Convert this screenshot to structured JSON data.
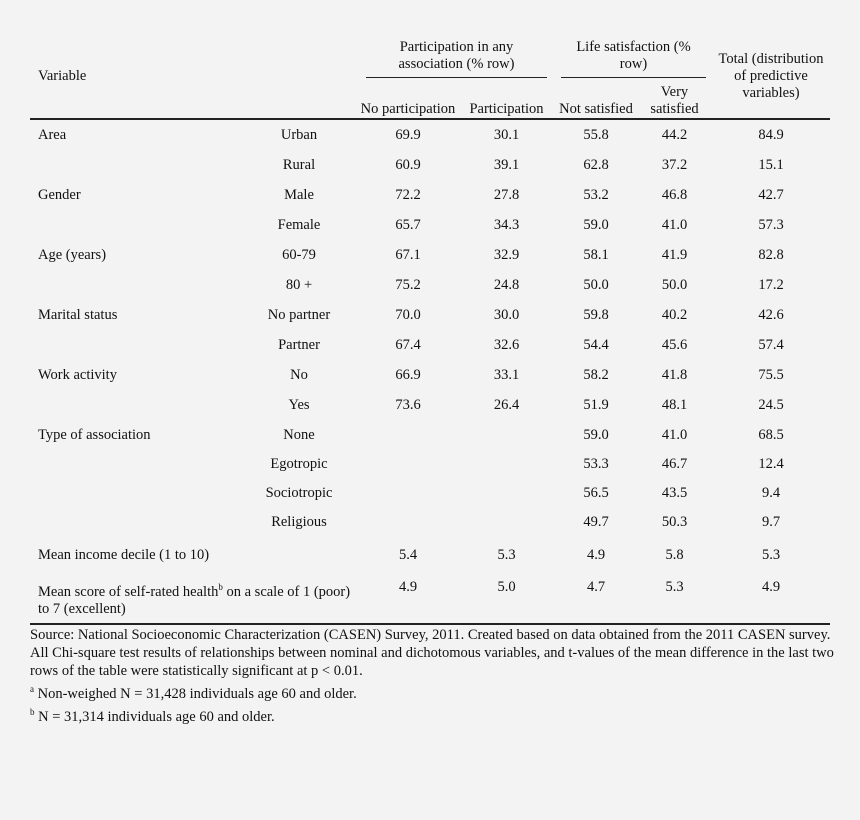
{
  "header": {
    "variable": "Variable",
    "group_participation": "Participation in any association (% row)",
    "group_satisfaction": "Life satisfaction (% row)",
    "total": "Total (distribution of predictive variables)",
    "sub_no_participation": "No participation",
    "sub_participation": "Participation",
    "sub_not_satisfied": "Not satisfied",
    "sub_very_satisfied": "Very satisfied"
  },
  "rows": [
    {
      "variable": "Area",
      "category": "Urban",
      "no_part": "69.9",
      "part": "30.1",
      "not_sat": "55.8",
      "very_sat": "44.2",
      "total": "84.9"
    },
    {
      "variable": "",
      "category": "Rural",
      "no_part": "60.9",
      "part": "39.1",
      "not_sat": "62.8",
      "very_sat": "37.2",
      "total": "15.1"
    },
    {
      "variable": "Gender",
      "category": "Male",
      "no_part": "72.2",
      "part": "27.8",
      "not_sat": "53.2",
      "very_sat": "46.8",
      "total": "42.7"
    },
    {
      "variable": "",
      "category": "Female",
      "no_part": "65.7",
      "part": "34.3",
      "not_sat": "59.0",
      "very_sat": "41.0",
      "total": "57.3"
    },
    {
      "variable": "Age (years)",
      "category": "60-79",
      "no_part": "67.1",
      "part": "32.9",
      "not_sat": "58.1",
      "very_sat": "41.9",
      "total": "82.8"
    },
    {
      "variable": "",
      "category": "80 +",
      "no_part": "75.2",
      "part": "24.8",
      "not_sat": "50.0",
      "very_sat": "50.0",
      "total": "17.2"
    },
    {
      "variable": "Marital status",
      "category": "No partner",
      "no_part": "70.0",
      "part": "30.0",
      "not_sat": "59.8",
      "very_sat": "40.2",
      "total": "42.6"
    },
    {
      "variable": "",
      "category": "Partner",
      "no_part": "67.4",
      "part": "32.6",
      "not_sat": "54.4",
      "very_sat": "45.6",
      "total": "57.4"
    },
    {
      "variable": "Work activity",
      "category": "No",
      "no_part": "66.9",
      "part": "33.1",
      "not_sat": "58.2",
      "very_sat": "41.8",
      "total": "75.5"
    },
    {
      "variable": "",
      "category": "Yes",
      "no_part": "73.6",
      "part": "26.4",
      "not_sat": "51.9",
      "very_sat": "48.1",
      "total": "24.5"
    },
    {
      "variable": "Type of association",
      "category": "None",
      "no_part": "",
      "part": "",
      "not_sat": "59.0",
      "very_sat": "41.0",
      "total": "68.5"
    },
    {
      "variable": "",
      "category": "Egotropic",
      "no_part": "",
      "part": "",
      "not_sat": "53.3",
      "very_sat": "46.7",
      "total": "12.4"
    },
    {
      "variable": "",
      "category": "Sociotropic",
      "no_part": "",
      "part": "",
      "not_sat": "56.5",
      "very_sat": "43.5",
      "total": "9.4"
    },
    {
      "variable": "",
      "category": "Religious",
      "no_part": "",
      "part": "",
      "not_sat": "49.7",
      "very_sat": "50.3",
      "total": "9.7"
    }
  ],
  "income_row": {
    "variable": "Mean income decile (1 to 10)",
    "no_part": "5.4",
    "part": "5.3",
    "not_sat": "4.9",
    "very_sat": "5.8",
    "total": "5.3"
  },
  "health_row": {
    "variable_pre": "Mean score of self-rated health",
    "variable_sup": "b",
    "variable_post": " on a scale of 1 (poor) to 7 (excellent)",
    "no_part": "4.9",
    "part": "5.0",
    "not_sat": "4.7",
    "very_sat": "5.3",
    "total": "4.9"
  },
  "notes": {
    "source": "Source: National Socioeconomic Characterization (CASEN) Survey, 2011. Created based on data obtained from the 2011 CASEN survey.",
    "chi_square": "All Chi-square test results of relationships between nominal and dichotomous variables, and t-values of the mean difference in the last two rows of the table were statistically significant at p < 0.01.",
    "note_a_mark": "a",
    "note_a": " Non-weighed N = 31,428 individuals age 60 and older.",
    "note_b_mark": "b",
    "note_b": " N = 31,314 individuals age 60 and older."
  }
}
